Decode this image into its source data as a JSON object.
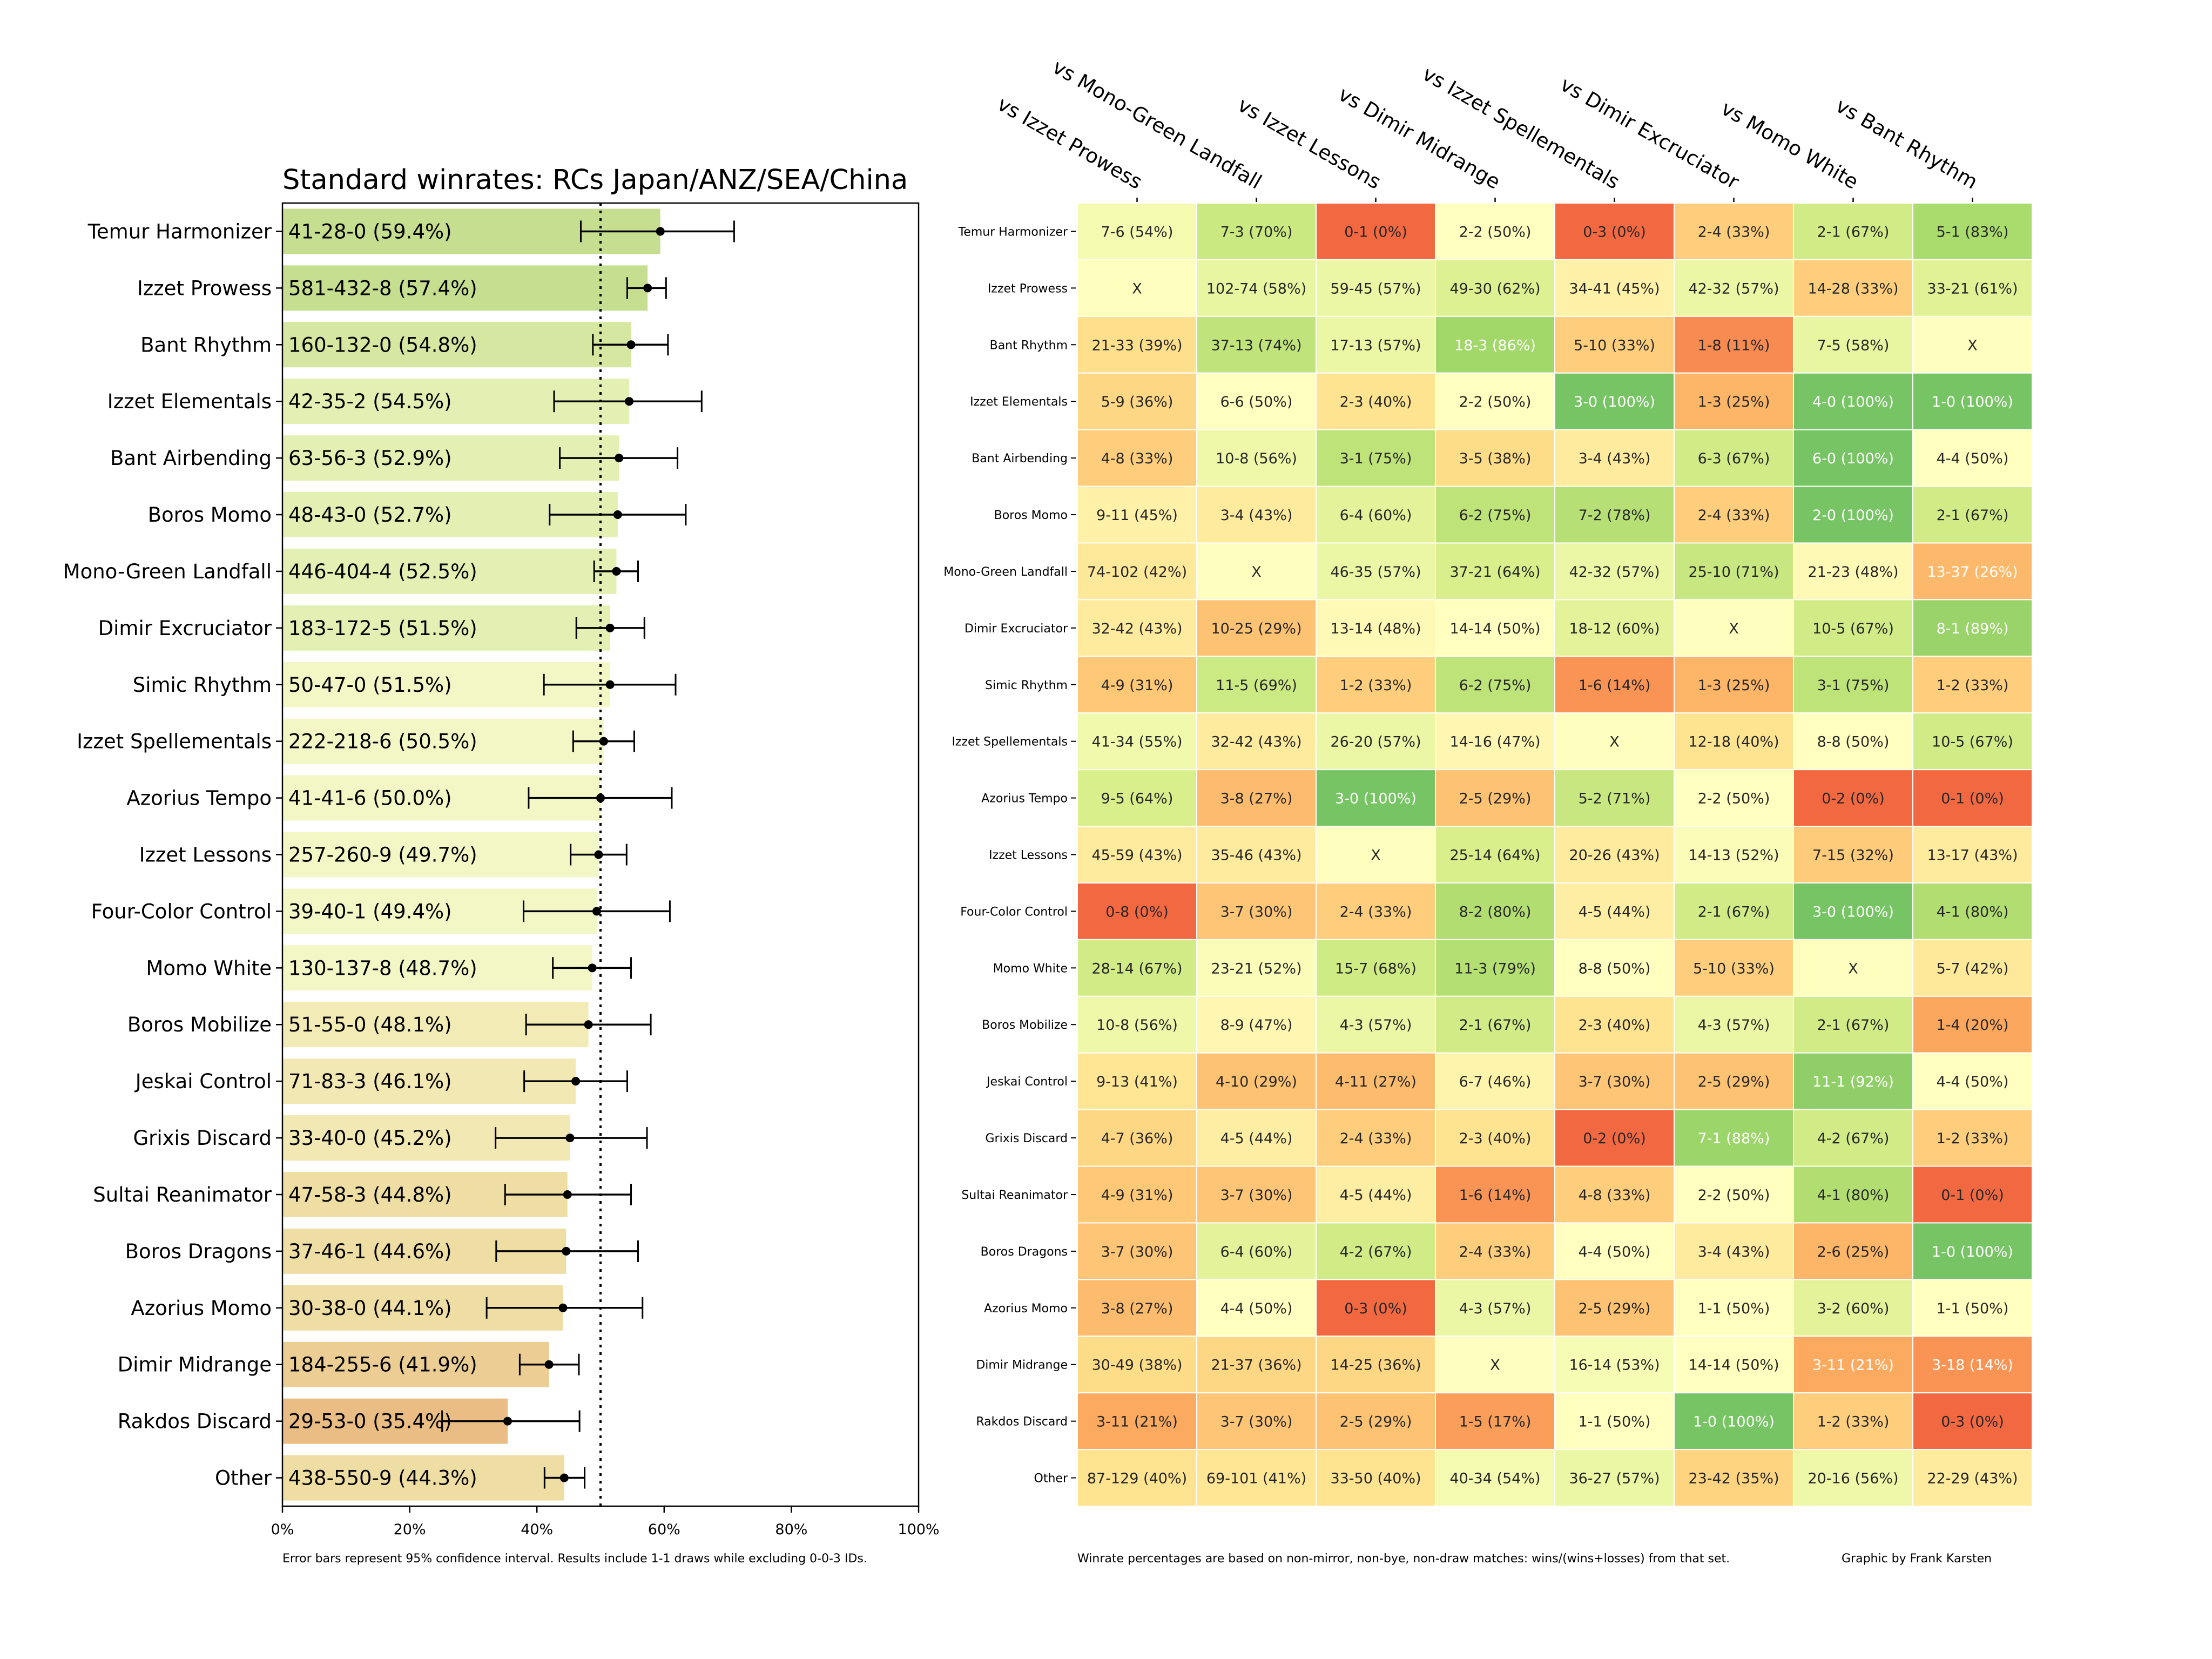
{
  "chart_data": [
    {
      "type": "bar",
      "orientation": "horizontal",
      "title": "Standard winrates: RCs Japan/ANZ/SEA/China",
      "xlabel": "",
      "ylabel": "",
      "xlim": [
        0,
        100
      ],
      "x_ticks": [
        "0%",
        "20%",
        "40%",
        "60%",
        "80%",
        "100%"
      ],
      "reference_line": {
        "value": 50,
        "style": "dotted"
      },
      "grid": false,
      "footnote": "Error bars represent 95% confidence interval. Results include 1-1 draws while excluding 0-0-3 IDs.",
      "categories": [
        "Temur Harmonizer",
        "Izzet Prowess",
        "Bant Rhythm",
        "Izzet Elementals",
        "Bant Airbending",
        "Boros Momo",
        "Mono-Green Landfall",
        "Dimir Excruciator",
        "Simic Rhythm",
        "Izzet Spellementals",
        "Azorius Tempo",
        "Izzet Lessons",
        "Four-Color Control",
        "Momo White",
        "Boros Mobilize",
        "Jeskai Control",
        "Grixis Discard",
        "Sultai Reanimator",
        "Boros Dragons",
        "Azorius Momo",
        "Dimir Midrange",
        "Rakdos Discard",
        "Other"
      ],
      "labels": [
        "41-28-0 (59.4%)",
        "581-432-8 (57.4%)",
        "160-132-0 (54.8%)",
        "42-35-2 (54.5%)",
        "63-56-3 (52.9%)",
        "48-43-0 (52.7%)",
        "446-404-4 (52.5%)",
        "183-172-5 (51.5%)",
        "50-47-0 (51.5%)",
        "222-218-6 (50.5%)",
        "41-41-6 (50.0%)",
        "257-260-9 (49.7%)",
        "39-40-1 (49.4%)",
        "130-137-8 (48.7%)",
        "51-55-0 (48.1%)",
        "71-83-3 (46.1%)",
        "33-40-0 (45.2%)",
        "47-58-3 (44.8%)",
        "37-46-1 (44.6%)",
        "30-38-0 (44.1%)",
        "184-255-6 (41.9%)",
        "29-53-0 (35.4%)",
        "438-550-9 (44.3%)"
      ],
      "values": [
        59.4,
        57.4,
        54.8,
        54.5,
        52.9,
        52.7,
        52.5,
        51.5,
        51.5,
        50.5,
        50.0,
        49.7,
        49.4,
        48.7,
        48.1,
        46.1,
        45.2,
        44.8,
        44.6,
        44.1,
        41.9,
        35.4,
        44.3
      ],
      "ci_low": [
        46.9,
        54.2,
        48.8,
        42.7,
        43.6,
        42.0,
        49.0,
        46.2,
        41.1,
        45.7,
        38.7,
        45.3,
        37.9,
        42.5,
        38.3,
        38.0,
        33.5,
        35.0,
        33.6,
        32.1,
        37.3,
        25.1,
        41.2
      ],
      "ci_high": [
        71.0,
        60.3,
        60.6,
        65.9,
        62.1,
        63.4,
        55.9,
        56.9,
        61.8,
        55.3,
        61.2,
        54.1,
        60.9,
        54.8,
        57.9,
        54.2,
        57.3,
        54.8,
        55.9,
        56.6,
        46.6,
        46.7,
        47.5
      ],
      "bar_colors": [
        "#c6de90",
        "#c6de90",
        "#d6e7a2",
        "#e3efb3",
        "#e3efb3",
        "#e3efb3",
        "#e3efb3",
        "#e3efb3",
        "#f3f7c6",
        "#f3f7c6",
        "#f3f7c6",
        "#f3f7c6",
        "#f3f7c6",
        "#f3f7c6",
        "#f2ebb6",
        "#f2e8b3",
        "#f2e8b3",
        "#efdea4",
        "#efdea4",
        "#efdea4",
        "#ecce94",
        "#e9bd84",
        "#efdea4"
      ]
    },
    {
      "type": "heatmap",
      "title": "",
      "columns": [
        "vs Izzet Prowess",
        "vs Mono-Green Landfall",
        "vs Izzet Lessons",
        "vs Dimir Midrange",
        "vs Izzet Spellementals",
        "vs Dimir Excruciator",
        "vs Momo White",
        "vs Bant Rhythm"
      ],
      "rows": [
        "Temur Harmonizer",
        "Izzet Prowess",
        "Bant Rhythm",
        "Izzet Elementals",
        "Bant Airbending",
        "Boros Momo",
        "Mono-Green Landfall",
        "Dimir Excruciator",
        "Simic Rhythm",
        "Izzet Spellementals",
        "Azorius Tempo",
        "Izzet Lessons",
        "Four-Color Control",
        "Momo White",
        "Boros Mobilize",
        "Jeskai Control",
        "Grixis Discard",
        "Sultai Reanimator",
        "Boros Dragons",
        "Azorius Momo",
        "Dimir Midrange",
        "Rakdos Discard",
        "Other"
      ],
      "cells": [
        [
          "7-6 (54%)",
          "7-3 (70%)",
          "0-1 (0%)",
          "2-2 (50%)",
          "0-3 (0%)",
          "2-4 (33%)",
          "2-1 (67%)",
          "5-1 (83%)"
        ],
        [
          "X",
          "102-74 (58%)",
          "59-45 (57%)",
          "49-30 (62%)",
          "34-41 (45%)",
          "42-32 (57%)",
          "14-28 (33%)",
          "33-21 (61%)"
        ],
        [
          "21-33 (39%)",
          "37-13 (74%)",
          "17-13 (57%)",
          "18-3 (86%)",
          "5-10 (33%)",
          "1-8 (11%)",
          "7-5 (58%)",
          "X"
        ],
        [
          "5-9 (36%)",
          "6-6 (50%)",
          "2-3 (40%)",
          "2-2 (50%)",
          "3-0 (100%)",
          "1-3 (25%)",
          "4-0 (100%)",
          "1-0 (100%)"
        ],
        [
          "4-8 (33%)",
          "10-8 (56%)",
          "3-1 (75%)",
          "3-5 (38%)",
          "3-4 (43%)",
          "6-3 (67%)",
          "6-0 (100%)",
          "4-4 (50%)"
        ],
        [
          "9-11 (45%)",
          "3-4 (43%)",
          "6-4 (60%)",
          "6-2 (75%)",
          "7-2 (78%)",
          "2-4 (33%)",
          "2-0 (100%)",
          "2-1 (67%)"
        ],
        [
          "74-102 (42%)",
          "X",
          "46-35 (57%)",
          "37-21 (64%)",
          "42-32 (57%)",
          "25-10 (71%)",
          "21-23 (48%)",
          "13-37 (26%)"
        ],
        [
          "32-42 (43%)",
          "10-25 (29%)",
          "13-14 (48%)",
          "14-14 (50%)",
          "18-12 (60%)",
          "X",
          "10-5 (67%)",
          "8-1 (89%)"
        ],
        [
          "4-9 (31%)",
          "11-5 (69%)",
          "1-2 (33%)",
          "6-2 (75%)",
          "1-6 (14%)",
          "1-3 (25%)",
          "3-1 (75%)",
          "1-2 (33%)"
        ],
        [
          "41-34 (55%)",
          "32-42 (43%)",
          "26-20 (57%)",
          "14-16 (47%)",
          "X",
          "12-18 (40%)",
          "8-8 (50%)",
          "10-5 (67%)"
        ],
        [
          "9-5 (64%)",
          "3-8 (27%)",
          "3-0 (100%)",
          "2-5 (29%)",
          "5-2 (71%)",
          "2-2 (50%)",
          "0-2 (0%)",
          "0-1 (0%)"
        ],
        [
          "45-59 (43%)",
          "35-46 (43%)",
          "X",
          "25-14 (64%)",
          "20-26 (43%)",
          "14-13 (52%)",
          "7-15 (32%)",
          "13-17 (43%)"
        ],
        [
          "0-8 (0%)",
          "3-7 (30%)",
          "2-4 (33%)",
          "8-2 (80%)",
          "4-5 (44%)",
          "2-1 (67%)",
          "3-0 (100%)",
          "4-1 (80%)"
        ],
        [
          "28-14 (67%)",
          "23-21 (52%)",
          "15-7 (68%)",
          "11-3 (79%)",
          "8-8 (50%)",
          "5-10 (33%)",
          "X",
          "5-7 (42%)"
        ],
        [
          "10-8 (56%)",
          "8-9 (47%)",
          "4-3 (57%)",
          "2-1 (67%)",
          "2-3 (40%)",
          "4-3 (57%)",
          "2-1 (67%)",
          "1-4 (20%)"
        ],
        [
          "9-13 (41%)",
          "4-10 (29%)",
          "4-11 (27%)",
          "6-7 (46%)",
          "3-7 (30%)",
          "2-5 (29%)",
          "11-1 (92%)",
          "4-4 (50%)"
        ],
        [
          "4-7 (36%)",
          "4-5 (44%)",
          "2-4 (33%)",
          "2-3 (40%)",
          "0-2 (0%)",
          "7-1 (88%)",
          "4-2 (67%)",
          "1-2 (33%)"
        ],
        [
          "4-9 (31%)",
          "3-7 (30%)",
          "4-5 (44%)",
          "1-6 (14%)",
          "4-8 (33%)",
          "2-2 (50%)",
          "4-1 (80%)",
          "0-1 (0%)"
        ],
        [
          "3-7 (30%)",
          "6-4 (60%)",
          "4-2 (67%)",
          "2-4 (33%)",
          "4-4 (50%)",
          "3-4 (43%)",
          "2-6 (25%)",
          "1-0 (100%)"
        ],
        [
          "3-8 (27%)",
          "4-4 (50%)",
          "0-3 (0%)",
          "4-3 (57%)",
          "2-5 (29%)",
          "1-1 (50%)",
          "3-2 (60%)",
          "1-1 (50%)"
        ],
        [
          "30-49 (38%)",
          "21-37 (36%)",
          "14-25 (36%)",
          "X",
          "16-14 (53%)",
          "14-14 (50%)",
          "3-11 (21%)",
          "3-18 (14%)"
        ],
        [
          "3-11 (21%)",
          "3-7 (30%)",
          "2-5 (29%)",
          "1-5 (17%)",
          "1-1 (50%)",
          "1-0 (100%)",
          "1-2 (33%)",
          "0-3 (0%)"
        ],
        [
          "87-129 (40%)",
          "69-101 (41%)",
          "33-50 (40%)",
          "40-34 (54%)",
          "36-27 (57%)",
          "23-42 (35%)",
          "20-16 (56%)",
          "22-29 (43%)"
        ]
      ],
      "colorscale": "RdYlGn (red = low winrate, green = high winrate)",
      "footnote": "Winrate percentages are based on non-mirror, non-bye, non-draw matches: wins/(wins+losses) from that set.",
      "credit": "Graphic by Frank Karsten"
    }
  ]
}
